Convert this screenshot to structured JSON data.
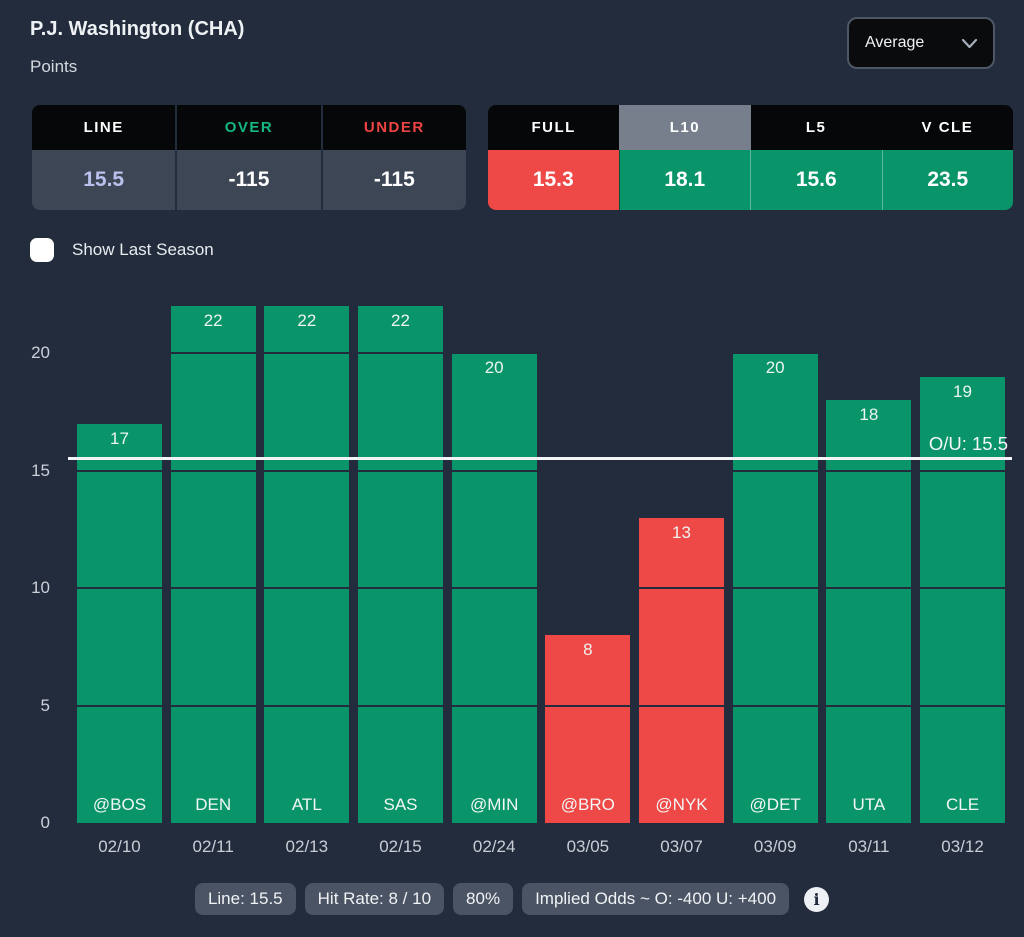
{
  "header": {
    "title": "P.J. Washington (CHA)",
    "subtitle": "Points",
    "dropdown_value": "Average"
  },
  "odds_table": {
    "columns": [
      {
        "label": "LINE",
        "label_color": "#ffffff",
        "value": "15.5",
        "value_color": "#b7c1eb"
      },
      {
        "label": "OVER",
        "label_color": "#14b881",
        "value": "-115",
        "value_color": "#ffffff"
      },
      {
        "label": "UNDER",
        "label_color": "#ef4444",
        "value": "-115",
        "value_color": "#ffffff"
      }
    ]
  },
  "splits_table": {
    "selected": "L10",
    "columns": [
      {
        "label": "FULL",
        "selected": false,
        "value": "15.3",
        "value_bg": "#ee4847"
      },
      {
        "label": "L10",
        "selected": true,
        "value": "18.1",
        "value_bg": "#0a9469"
      },
      {
        "label": "L5",
        "selected": false,
        "value": "15.6",
        "value_bg": "#0a9469"
      },
      {
        "label": "V CLE",
        "selected": false,
        "value": "23.5",
        "value_bg": "#0a9469"
      }
    ]
  },
  "show_last_season": {
    "label": "Show Last Season",
    "checked": false
  },
  "chart_data": {
    "type": "bar",
    "title": "",
    "categories": [
      "@BOS",
      "DEN",
      "ATL",
      "SAS",
      "@MIN",
      "@BRO",
      "@NYK",
      "@DET",
      "UTA",
      "CLE"
    ],
    "dates": [
      "02/10",
      "02/11",
      "02/13",
      "02/15",
      "02/24",
      "03/05",
      "03/07",
      "03/09",
      "03/11",
      "03/12"
    ],
    "values": [
      17,
      22,
      22,
      22,
      20,
      8,
      13,
      20,
      18,
      19
    ],
    "over_under_line": 15.5,
    "over_under_label": "O/U: 15.5",
    "y_ticks": [
      0,
      5,
      10,
      15,
      20
    ],
    "ylim": [
      0,
      24.5
    ],
    "grid": true,
    "bar_color_over": "#0a9469",
    "bar_color_under": "#ee4847",
    "ou_line_color": "#f3f4f6"
  },
  "footer": {
    "chips": [
      "Line: 15.5",
      "Hit Rate: 8 / 10",
      "80%",
      "Implied Odds ~ O: -400 U: +400"
    ],
    "info_icon": "info-icon"
  },
  "colors": {
    "background": "#222c3c",
    "green": "#0a9469",
    "red": "#ee4847",
    "header_black": "#060708",
    "slate_row": "#3d4655",
    "selected_tab_gray": "#777f8d",
    "chip_gray": "#4b5464",
    "line_value_lavender": "#b7c1eb"
  }
}
